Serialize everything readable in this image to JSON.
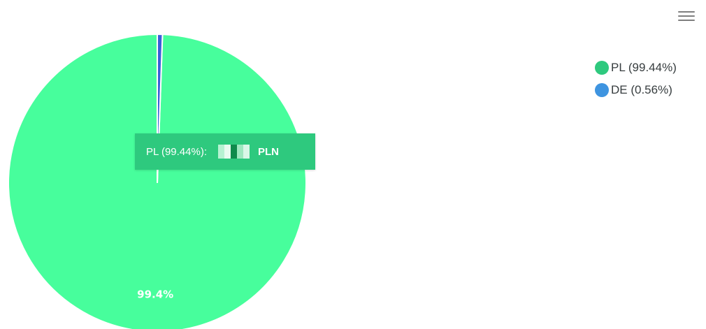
{
  "chart_data": {
    "type": "pie",
    "slices": [
      {
        "label": "PL (99.44%)",
        "value": 99.44,
        "color": "#47fe9c",
        "data_label": "99.4%"
      },
      {
        "label": "DE (0.56%)",
        "value": 0.56,
        "color": "#3b5fd8",
        "data_label": ""
      }
    ],
    "legend_position": "top-right",
    "legend_marker_colors": [
      "#2ec97e",
      "#3e94e0"
    ]
  },
  "tooltip": {
    "label": "PL (99.44%):",
    "currency": "PLN",
    "color": "#2ec97e"
  },
  "toolbar": {
    "menu_icon": "hamburger-menu-icon"
  }
}
